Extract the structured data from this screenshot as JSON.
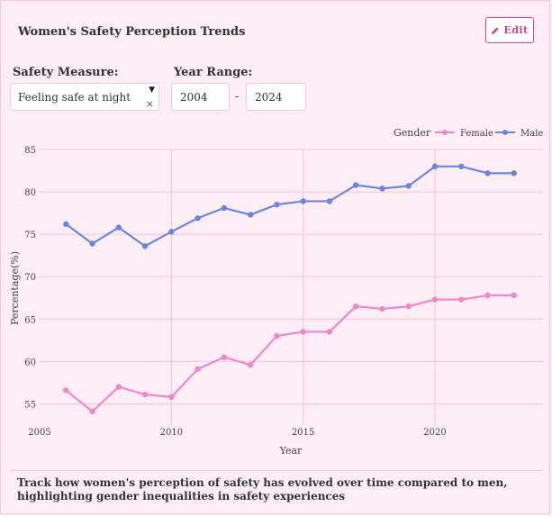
{
  "header": {
    "title": "Women's Safety Perception Trends",
    "edit_label": "Edit"
  },
  "controls": {
    "measure_label": "Safety Measure:",
    "measure_value": "Feeling safe at night",
    "range_label": "Year Range:",
    "year_from": "2004",
    "range_separator": "-",
    "year_to": "2024"
  },
  "chart_data": {
    "type": "line",
    "xlabel": "Year",
    "ylabel": "Percentage(%)",
    "xlim": [
      2005,
      2024.1
    ],
    "ylim": [
      52.5,
      85
    ],
    "x_ticks": [
      2005,
      2010,
      2015,
      2020
    ],
    "y_ticks": [
      55,
      60,
      65,
      70,
      75,
      80,
      85
    ],
    "grid": true,
    "legend": {
      "title": "Gender",
      "placement": "top-right"
    },
    "x": [
      2006,
      2007,
      2008,
      2009,
      2010,
      2011,
      2012,
      2013,
      2014,
      2015,
      2016,
      2017,
      2018,
      2019,
      2020,
      2021,
      2022,
      2023
    ],
    "series": [
      {
        "name": "Female",
        "color": "#f088c8",
        "values": [
          56.6,
          54.1,
          57.0,
          56.1,
          55.8,
          59.1,
          60.5,
          59.6,
          63.0,
          63.5,
          63.5,
          66.5,
          66.2,
          66.5,
          67.3,
          67.3,
          67.8,
          67.8
        ]
      },
      {
        "name": "Male",
        "color": "#6b86dd",
        "values": [
          76.2,
          73.9,
          75.8,
          73.6,
          75.3,
          76.9,
          78.1,
          77.3,
          78.5,
          78.9,
          78.9,
          80.8,
          80.4,
          80.7,
          83.0,
          83.0,
          82.2,
          82.2
        ]
      }
    ]
  },
  "footer": {
    "description": "Track how women's perception of safety has evolved over time compared to men, highlighting gender inequalities in safety experiences"
  }
}
